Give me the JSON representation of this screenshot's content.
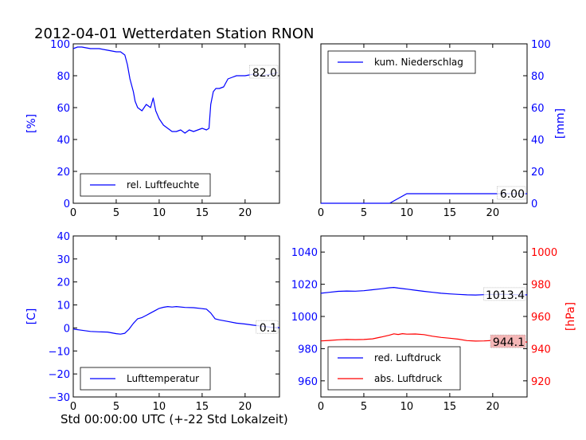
{
  "figure": {
    "title": "2012-04-01 Wetterdaten Station RNON",
    "xcaption": "Std 00:00:00 UTC (+-22 Std Lokalzeit)"
  },
  "colors": {
    "blue": "#0000ff",
    "red": "#ff0000",
    "axis": "#000000",
    "labelbox_red": "#f4b6b6"
  },
  "chart_data": [
    {
      "type": "line",
      "ylabel": "[%]",
      "ylabel_side": "left",
      "xlim": [
        0,
        24
      ],
      "ylim": [
        0,
        100
      ],
      "xticks": [
        "0",
        "5",
        "10",
        "15",
        "20"
      ],
      "yticks": [
        "0",
        "20",
        "40",
        "60",
        "80",
        "100"
      ],
      "legend_loc": "lower-left",
      "series": [
        {
          "name": "rel. Luftfeuchte",
          "color": "#0000ff",
          "x": [
            0,
            0.5,
            1,
            2,
            3,
            4,
            5,
            5.5,
            6,
            6.3,
            6.6,
            7,
            7.2,
            7.5,
            8,
            8.5,
            9,
            9.3,
            9.6,
            10,
            10.5,
            11,
            11.5,
            12,
            12.5,
            13,
            13.5,
            14,
            14.5,
            15,
            15.5,
            15.8,
            16,
            16.3,
            16.6,
            17,
            17.5,
            18,
            18.5,
            19,
            20,
            21,
            22,
            23,
            23.8
          ],
          "y": [
            97,
            98,
            98,
            97,
            97,
            96,
            95,
            95,
            93,
            87,
            78,
            70,
            64,
            60,
            58,
            62,
            60,
            66,
            58,
            53,
            49,
            47,
            45,
            45,
            46,
            44,
            46,
            45,
            46,
            47,
            46,
            47,
            62,
            70,
            72,
            72,
            73,
            78,
            79,
            80,
            80,
            81,
            80,
            81,
            82
          ]
        }
      ],
      "end_label": "82.0"
    },
    {
      "type": "line",
      "ylabel": "[mm]",
      "ylabel_side": "right",
      "xlim": [
        0,
        24
      ],
      "ylim": [
        0,
        100
      ],
      "xticks": [
        "0",
        "5",
        "10",
        "15",
        "20"
      ],
      "yticks": [
        "0",
        "20",
        "40",
        "60",
        "80",
        "100"
      ],
      "legend_loc": "top-left",
      "series": [
        {
          "name": "kum. Niederschlag",
          "color": "#0000ff",
          "x": [
            0,
            8,
            9,
            10,
            24
          ],
          "y": [
            0,
            0,
            3,
            6,
            6
          ]
        }
      ],
      "end_label": "6.00"
    },
    {
      "type": "line",
      "ylabel": "[C]",
      "ylabel_side": "left",
      "xlim": [
        0,
        24
      ],
      "ylim": [
        -30,
        40
      ],
      "xticks": [
        "0",
        "5",
        "10",
        "15",
        "20"
      ],
      "yticks": [
        "−30",
        "−20",
        "−10",
        "0",
        "10",
        "20",
        "30",
        "40"
      ],
      "legend_loc": "lower-left",
      "series": [
        {
          "name": "Lufttemperatur",
          "color": "#0000ff",
          "x": [
            0,
            1,
            2,
            3,
            4,
            5,
            5.5,
            6,
            6.5,
            7,
            7.5,
            8,
            8.5,
            9,
            9.5,
            10,
            10.5,
            11,
            11.5,
            12,
            13,
            14,
            15,
            15.5,
            16,
            16.5,
            17,
            18,
            19,
            20,
            21,
            22,
            23,
            24
          ],
          "y": [
            -0.5,
            -1,
            -1.5,
            -1.7,
            -1.8,
            -2.5,
            -2.7,
            -2.3,
            -0.5,
            2,
            4,
            4.5,
            5.5,
            6.5,
            7.5,
            8.5,
            9,
            9.3,
            9.1,
            9.3,
            8.9,
            8.8,
            8.4,
            8.2,
            6.5,
            4,
            3.5,
            2.8,
            2.1,
            1.7,
            1.2,
            0.8,
            0.3,
            0.1
          ]
        }
      ],
      "end_label": "0.1"
    },
    {
      "type": "line",
      "ylabel": "[hPa]",
      "ylabel_side": "right",
      "xlim": [
        0,
        24
      ],
      "ylim_left": [
        950,
        1050
      ],
      "ylim_right": [
        910,
        1010
      ],
      "xticks": [
        "0",
        "5",
        "10",
        "15",
        "20"
      ],
      "yticks_left": [
        "960",
        "980",
        "1000",
        "1020",
        "1040"
      ],
      "yticks_right": [
        "920",
        "940",
        "960",
        "980",
        "1000"
      ],
      "legend_loc": "lower-left",
      "series": [
        {
          "name": "red. Luftdruck",
          "color": "#0000ff",
          "axis": "left",
          "x": [
            0,
            1,
            2,
            3,
            4,
            5,
            6,
            7,
            8,
            8.5,
            9,
            10,
            11,
            12,
            13,
            14,
            15,
            16,
            17,
            18,
            19,
            20,
            21,
            22,
            23,
            24
          ],
          "y": [
            1014.4,
            1015,
            1015.6,
            1015.8,
            1015.7,
            1016,
            1016.6,
            1017.2,
            1017.8,
            1018,
            1017.6,
            1017,
            1016.3,
            1015.6,
            1015,
            1014.4,
            1014,
            1013.7,
            1013.4,
            1013.3,
            1013.5,
            1013.7,
            1013.8,
            1013.6,
            1013.4,
            1013.4
          ]
        },
        {
          "name": "abs. Luftdruck",
          "color": "#ff0000",
          "axis": "right",
          "x": [
            0,
            1,
            2,
            3,
            4,
            5,
            6,
            7,
            8,
            8.5,
            9,
            9.5,
            10,
            11,
            12,
            13,
            14,
            15,
            16,
            17,
            18,
            19,
            20,
            21,
            22,
            23,
            24
          ],
          "y": [
            944.8,
            945.1,
            945.5,
            945.7,
            945.6,
            945.7,
            946.1,
            947.2,
            948.4,
            949.2,
            948.8,
            949.3,
            949,
            949.1,
            948.7,
            947.7,
            947,
            946.5,
            945.9,
            945,
            944.7,
            944.8,
            945.1,
            945.2,
            944.8,
            944.4,
            944.1
          ]
        }
      ],
      "end_labels": [
        "1013.4",
        "944.1"
      ]
    }
  ]
}
